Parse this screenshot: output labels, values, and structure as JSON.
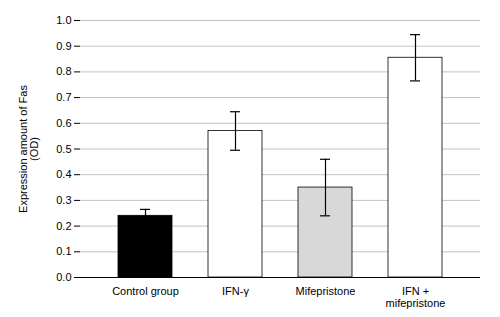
{
  "chart_data": {
    "type": "bar",
    "categories": [
      "Control group",
      "IFN-γ",
      "Mifepristone",
      "IFN +\nmifepristone"
    ],
    "values": [
      0.24,
      0.57,
      0.35,
      0.855
    ],
    "errors": [
      0.025,
      0.075,
      0.11,
      0.09
    ],
    "colors": [
      "black",
      "white",
      "#d8d8d8",
      "white"
    ],
    "ylabel": "Expression amount of Fas\n(OD)",
    "ylim": [
      0,
      1.0
    ],
    "yticks": [
      {
        "value": 0,
        "label": "0.0"
      },
      0.1,
      0.2,
      0.3,
      0.4,
      0.5,
      0.6,
      0.7,
      0.8,
      0.9,
      {
        "value": 1.0,
        "label": "1.0"
      }
    ],
    "grid": true
  }
}
